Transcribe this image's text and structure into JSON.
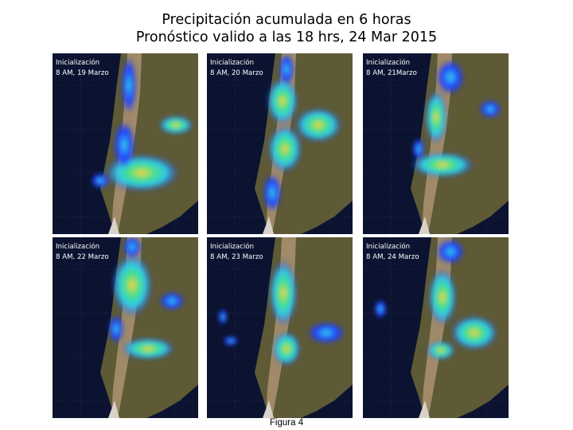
{
  "figure": {
    "title_line1": "Precipitación acumulada en 6 horas",
    "title_line2": "Pronóstico valido a las 18 hrs, 24 Mar 2015",
    "caption": "Figura 4"
  },
  "panels": [
    {
      "init_label": "Inicialización",
      "run_label": "8 AM, 19 Marzo"
    },
    {
      "init_label": "Inicialización",
      "run_label": "8 AM, 20 Marzo"
    },
    {
      "init_label": "Inicialización",
      "run_label": "8 AM, 21Marzo"
    },
    {
      "init_label": "Inicialización",
      "run_label": "8 AM, 22 Marzo"
    },
    {
      "init_label": "Inicialización",
      "run_label": "8 AM, 23 Marzo"
    },
    {
      "init_label": "Inicialización",
      "run_label": "8 AM, 24 Marzo"
    }
  ],
  "colors": {
    "ocean": "#0b1330",
    "land": "#5e5a36",
    "andes": "#a08a68",
    "precip_low": "#1f3cff",
    "precip_mid": "#34d6e8",
    "precip_high": "#ffd23a"
  }
}
